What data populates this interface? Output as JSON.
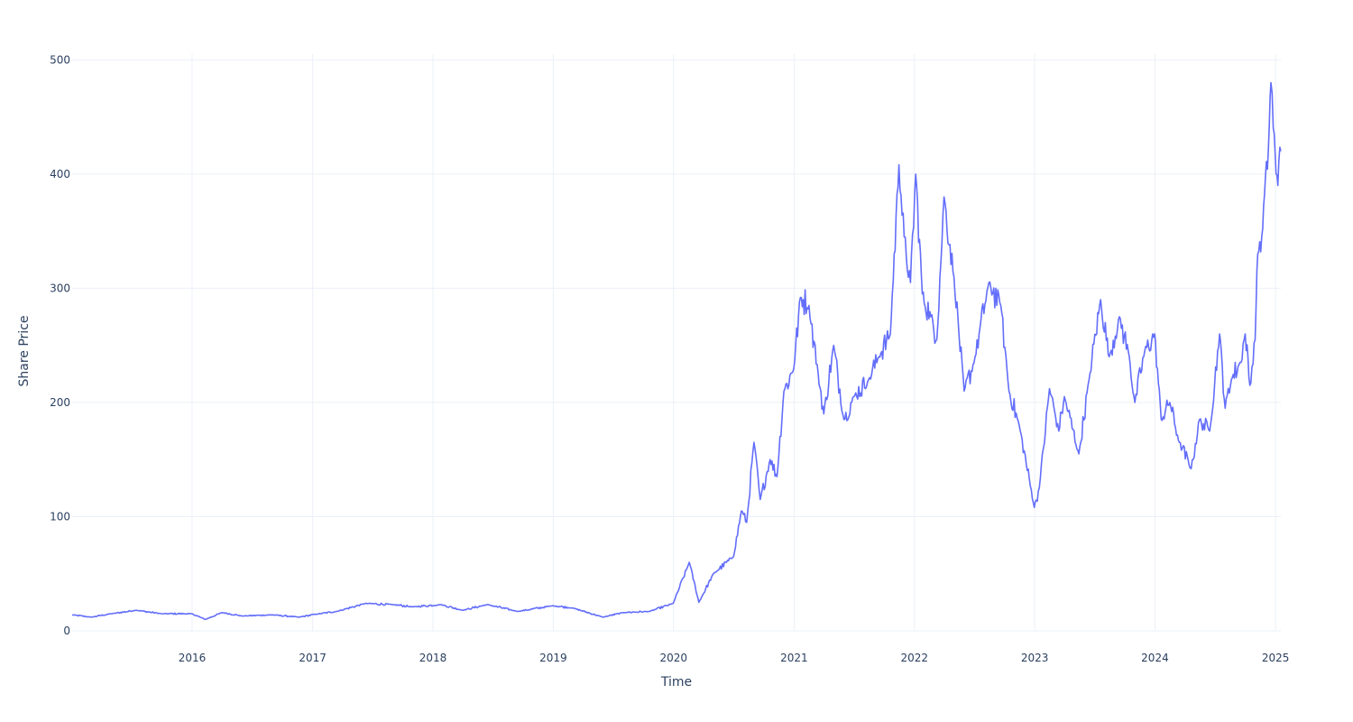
{
  "chart_data": {
    "type": "line",
    "title": "",
    "xlabel": "Time",
    "ylabel": "Share Price",
    "xlim": [
      "2015-01-02",
      "2025-01-17"
    ],
    "ylim": [
      0,
      505
    ],
    "grid": true,
    "legend": "none",
    "x_ticks": [
      "2016",
      "2017",
      "2018",
      "2019",
      "2020",
      "2021",
      "2022",
      "2023",
      "2024",
      "2025"
    ],
    "y_ticks": [
      "0",
      "100",
      "200",
      "300",
      "400",
      "500"
    ],
    "series": [
      {
        "color": "#636efa",
        "points": [
          [
            "2015-01-02",
            14
          ],
          [
            "2015-03-01",
            12
          ],
          [
            "2015-05-01",
            15
          ],
          [
            "2015-07-15",
            18
          ],
          [
            "2015-10-01",
            15
          ],
          [
            "2015-12-31",
            15
          ],
          [
            "2016-02-10",
            10
          ],
          [
            "2016-04-01",
            16
          ],
          [
            "2016-06-01",
            13
          ],
          [
            "2016-09-01",
            14
          ],
          [
            "2016-11-20",
            12
          ],
          [
            "2017-01-20",
            15
          ],
          [
            "2017-03-15",
            17
          ],
          [
            "2017-06-10",
            24
          ],
          [
            "2017-09-01",
            23
          ],
          [
            "2017-11-01",
            21
          ],
          [
            "2018-01-25",
            23
          ],
          [
            "2018-04-01",
            18
          ],
          [
            "2018-06-15",
            23
          ],
          [
            "2018-09-15",
            17
          ],
          [
            "2018-12-31",
            22
          ],
          [
            "2019-03-01",
            20
          ],
          [
            "2019-06-01",
            12
          ],
          [
            "2019-08-01",
            16
          ],
          [
            "2019-10-20",
            17
          ],
          [
            "2019-12-31",
            24
          ],
          [
            "2020-02-18",
            60
          ],
          [
            "2020-03-18",
            25
          ],
          [
            "2020-05-01",
            50
          ],
          [
            "2020-07-01",
            65
          ],
          [
            "2020-07-25",
            105
          ],
          [
            "2020-08-10",
            95
          ],
          [
            "2020-09-01",
            165
          ],
          [
            "2020-09-20",
            115
          ],
          [
            "2020-10-20",
            150
          ],
          [
            "2020-11-10",
            135
          ],
          [
            "2020-12-01",
            210
          ],
          [
            "2020-12-31",
            230
          ],
          [
            "2021-01-20",
            292
          ],
          [
            "2021-02-15",
            285
          ],
          [
            "2021-03-15",
            225
          ],
          [
            "2021-04-01",
            190
          ],
          [
            "2021-05-01",
            250
          ],
          [
            "2021-06-01",
            185
          ],
          [
            "2021-07-01",
            205
          ],
          [
            "2021-08-15",
            220
          ],
          [
            "2021-09-15",
            240
          ],
          [
            "2021-10-20",
            260
          ],
          [
            "2021-11-15",
            408
          ],
          [
            "2021-12-01",
            345
          ],
          [
            "2021-12-20",
            305
          ],
          [
            "2022-01-05",
            400
          ],
          [
            "2022-01-25",
            295
          ],
          [
            "2022-02-20",
            275
          ],
          [
            "2022-03-10",
            255
          ],
          [
            "2022-04-01",
            380
          ],
          [
            "2022-05-01",
            310
          ],
          [
            "2022-06-01",
            210
          ],
          [
            "2022-07-01",
            235
          ],
          [
            "2022-08-15",
            305
          ],
          [
            "2022-09-20",
            285
          ],
          [
            "2022-10-15",
            210
          ],
          [
            "2022-11-15",
            180
          ],
          [
            "2022-12-31",
            108
          ],
          [
            "2023-01-15",
            125
          ],
          [
            "2023-02-15",
            212
          ],
          [
            "2023-03-15",
            175
          ],
          [
            "2023-04-01",
            205
          ],
          [
            "2023-05-15",
            155
          ],
          [
            "2023-06-15",
            220
          ],
          [
            "2023-07-20",
            290
          ],
          [
            "2023-08-15",
            240
          ],
          [
            "2023-09-15",
            275
          ],
          [
            "2023-10-15",
            240
          ],
          [
            "2023-11-01",
            200
          ],
          [
            "2023-12-01",
            245
          ],
          [
            "2023-12-31",
            260
          ],
          [
            "2024-01-20",
            185
          ],
          [
            "2024-02-15",
            200
          ],
          [
            "2024-03-15",
            165
          ],
          [
            "2024-04-20",
            142
          ],
          [
            "2024-05-15",
            185
          ],
          [
            "2024-06-15",
            175
          ],
          [
            "2024-07-15",
            260
          ],
          [
            "2024-08-01",
            195
          ],
          [
            "2024-08-20",
            220
          ],
          [
            "2024-09-15",
            235
          ],
          [
            "2024-10-01",
            260
          ],
          [
            "2024-10-15",
            215
          ],
          [
            "2024-10-31",
            255
          ],
          [
            "2024-11-08",
            330
          ],
          [
            "2024-11-20",
            345
          ],
          [
            "2024-12-10",
            420
          ],
          [
            "2024-12-18",
            480
          ],
          [
            "2024-12-25",
            440
          ],
          [
            "2025-01-08",
            390
          ],
          [
            "2025-01-17",
            420
          ]
        ]
      }
    ]
  }
}
